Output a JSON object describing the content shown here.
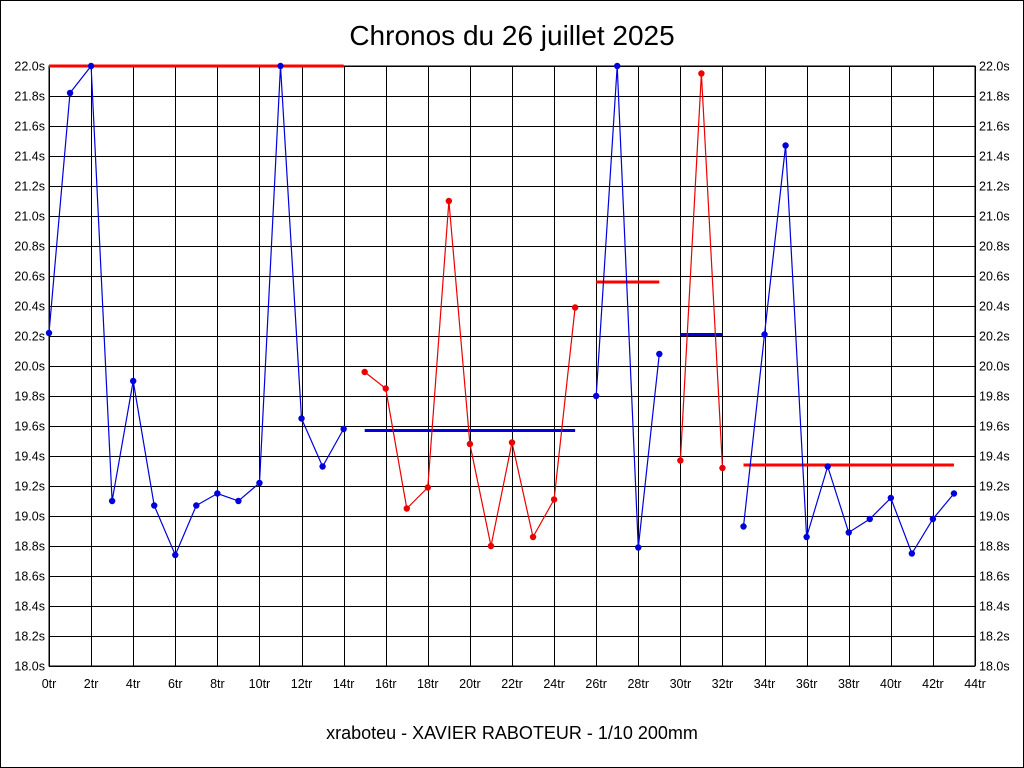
{
  "chart_data": {
    "type": "line",
    "title": "Chronos du 26 juillet 2025",
    "footer": "xraboteu - XAVIER RABOTEUR - 1/10 200mm",
    "x_tick_labels": [
      "0tr",
      "2tr",
      "4tr",
      "6tr",
      "8tr",
      "10tr",
      "12tr",
      "14tr",
      "16tr",
      "18tr",
      "20tr",
      "22tr",
      "24tr",
      "26tr",
      "28tr",
      "30tr",
      "32tr",
      "34tr",
      "36tr",
      "38tr",
      "40tr",
      "42tr",
      "44tr"
    ],
    "y_tick_labels": [
      "18.0s",
      "18.2s",
      "18.4s",
      "18.6s",
      "18.8s",
      "19.0s",
      "19.2s",
      "19.4s",
      "19.6s",
      "19.8s",
      "20.0s",
      "20.2s",
      "20.4s",
      "20.6s",
      "20.8s",
      "21.0s",
      "21.2s",
      "21.4s",
      "21.6s",
      "21.8s",
      "22.0s"
    ],
    "xlim": [
      0,
      44
    ],
    "ylim": [
      18.0,
      22.0
    ],
    "grid": true,
    "series": [
      {
        "color": "#0000dd",
        "points": [
          [
            0,
            20.22
          ],
          [
            1,
            21.82
          ],
          [
            2,
            22.0
          ],
          [
            3,
            19.1
          ],
          [
            4,
            19.9
          ],
          [
            5,
            19.07
          ],
          [
            6,
            18.74
          ],
          [
            7,
            19.07
          ],
          [
            8,
            19.15
          ],
          [
            9,
            19.1
          ],
          [
            10,
            19.22
          ],
          [
            11,
            22.0
          ],
          [
            12,
            19.65
          ],
          [
            13,
            19.33
          ],
          [
            14,
            19.58
          ]
        ],
        "mean": 22.0,
        "mean_color": "#ff0000"
      },
      {
        "color": "#ee0000",
        "points": [
          [
            15,
            19.96
          ],
          [
            16,
            19.85
          ],
          [
            17,
            19.05
          ],
          [
            18,
            19.19
          ],
          [
            19,
            21.1
          ],
          [
            20,
            19.48
          ],
          [
            21,
            18.8
          ],
          [
            22,
            19.49
          ],
          [
            23,
            18.86
          ],
          [
            24,
            19.11
          ],
          [
            25,
            20.39
          ]
        ],
        "mean": 19.57,
        "mean_color": "#0000dd"
      },
      {
        "color": "#0000dd",
        "points": [
          [
            26,
            19.8
          ],
          [
            27,
            22.0
          ],
          [
            28,
            18.79
          ],
          [
            29,
            20.08
          ]
        ],
        "mean": 20.56,
        "mean_color": "#ff0000"
      },
      {
        "color": "#ee0000",
        "points": [
          [
            30,
            19.37
          ],
          [
            31,
            21.95
          ],
          [
            32,
            19.32
          ]
        ],
        "mean": 20.21,
        "mean_color": "#0000dd"
      },
      {
        "color": "#0000dd",
        "points": [
          [
            33,
            18.93
          ],
          [
            34,
            20.21
          ],
          [
            35,
            21.47
          ],
          [
            36,
            18.86
          ],
          [
            37,
            19.33
          ],
          [
            38,
            18.89
          ],
          [
            39,
            18.98
          ],
          [
            40,
            19.12
          ],
          [
            41,
            18.75
          ],
          [
            42,
            18.98
          ],
          [
            43,
            19.15
          ]
        ],
        "mean": 19.34,
        "mean_color": "#ff0000"
      }
    ]
  }
}
